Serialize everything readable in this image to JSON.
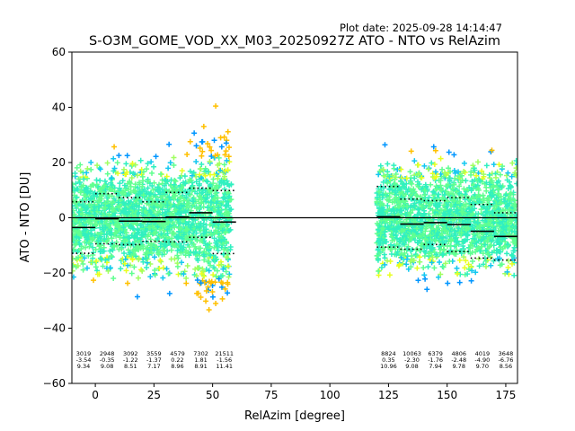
{
  "chart_data": {
    "type": "scatter",
    "plot_date": "Plot date: 2025-09-28 14:14:47",
    "title": "S-O3M_GOME_VOD_XX_M03_20250927Z ATO - NTO vs RelAzim",
    "xlabel": "RelAzim [degree]",
    "ylabel": "ATO - NTO [DU]",
    "xlim": [
      -10,
      180
    ],
    "ylim": [
      -60,
      60
    ],
    "xticks": [
      "0",
      "25",
      "50",
      "75",
      "100",
      "125",
      "150",
      "175"
    ],
    "yticks": [
      "−60",
      "−40",
      "−20",
      "0",
      "20",
      "40",
      "60"
    ],
    "bins": [
      {
        "x": -5,
        "count": "3019",
        "mean": "-3.54",
        "std": "9.34"
      },
      {
        "x": 5,
        "count": "2948",
        "mean": "-0.35",
        "std": "9.08"
      },
      {
        "x": 15,
        "count": "3092",
        "mean": "-1.22",
        "std": "8.51"
      },
      {
        "x": 25,
        "count": "3559",
        "mean": "-1.37",
        "std": "7.17"
      },
      {
        "x": 35,
        "count": "4579",
        "mean": "0.22",
        "std": "8.96"
      },
      {
        "x": 45,
        "count": "7302",
        "mean": "1.81",
        "std": "8.91"
      },
      {
        "x": 55,
        "count": "21511",
        "mean": "-1.56",
        "std": "11.41"
      },
      {
        "x": 125,
        "count": "8824",
        "mean": "0.35",
        "std": "10.96"
      },
      {
        "x": 135,
        "count": "10063",
        "mean": "-2.30",
        "std": "9.08"
      },
      {
        "x": 145,
        "count": "6379",
        "mean": "-1.76",
        "std": "7.94"
      },
      {
        "x": 155,
        "count": "4806",
        "mean": "-2.48",
        "std": "9.78"
      },
      {
        "x": 165,
        "count": "4019",
        "mean": "-4.90",
        "std": "9.70"
      },
      {
        "x": 175,
        "count": "3648",
        "mean": "-6.76",
        "std": "8.56"
      }
    ],
    "scatter_ranges": [
      [
        -10,
        58
      ],
      [
        120,
        180
      ]
    ],
    "palette": [
      "#0a2cff",
      "#0096ff",
      "#14c8f0",
      "#30f0c0",
      "#60ff90",
      "#a0ff60",
      "#e8ff20",
      "#ffc000"
    ],
    "zero_line": 0
  }
}
